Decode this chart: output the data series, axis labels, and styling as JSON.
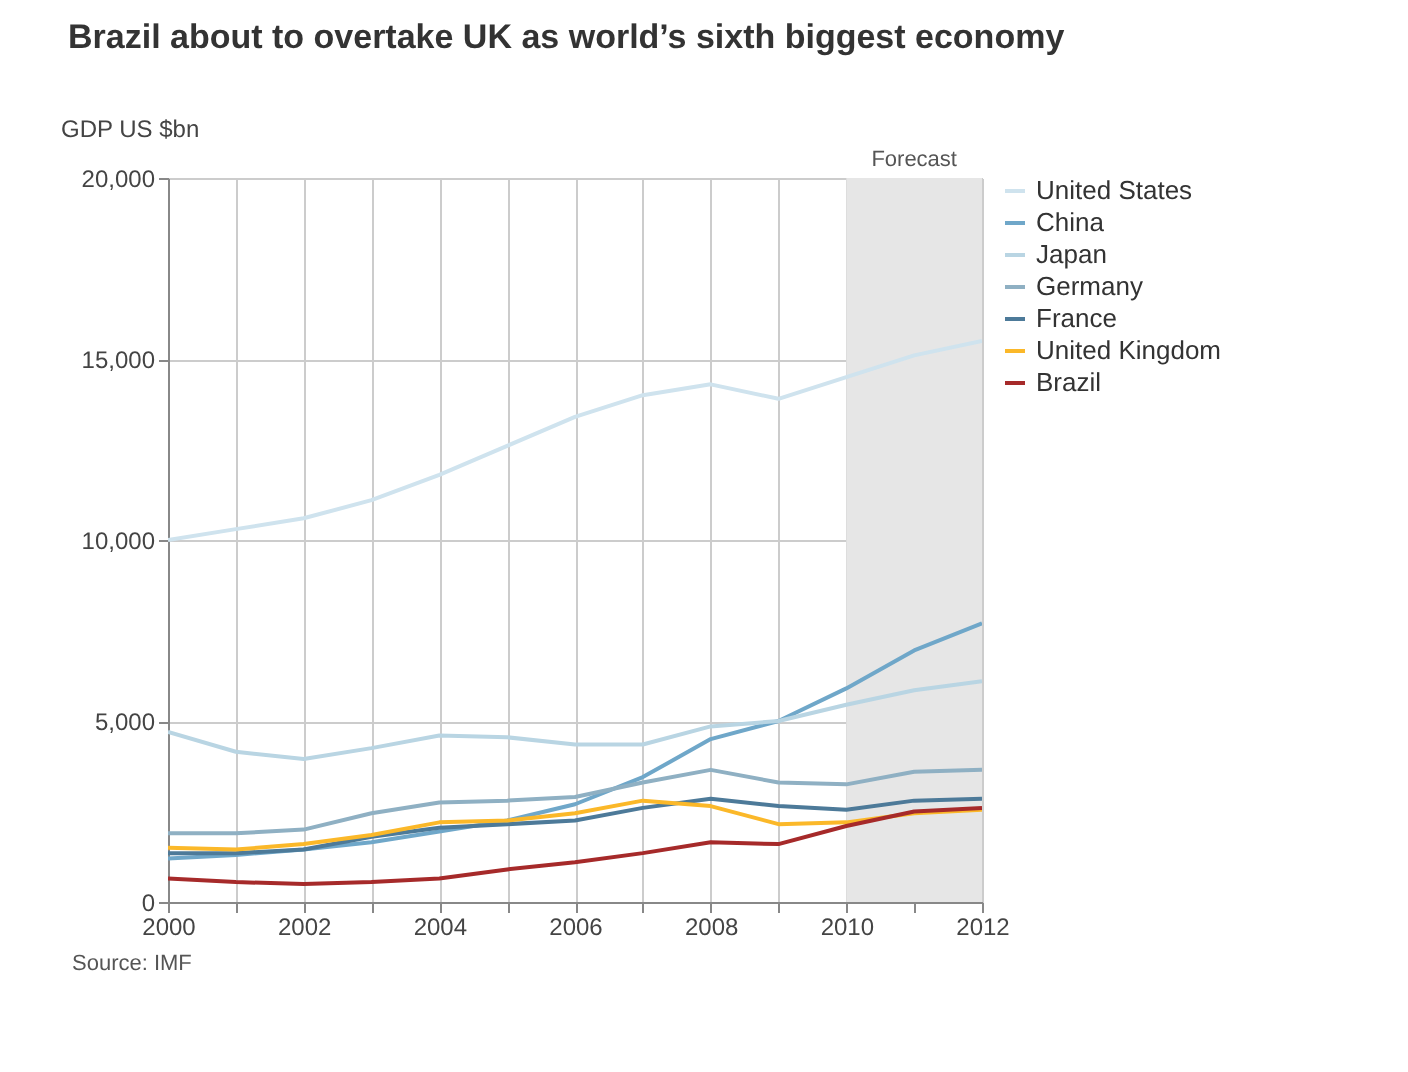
{
  "chart_data": {
    "type": "line",
    "title": "Brazil about to overtake UK as world’s sixth biggest economy",
    "ylabel": "GDP US $bn",
    "x": [
      2000,
      2001,
      2002,
      2003,
      2004,
      2005,
      2006,
      2007,
      2008,
      2009,
      2010,
      2011,
      2012
    ],
    "series": [
      {
        "name": "United States",
        "color": "#cfe3ee",
        "values": [
          10000,
          10300,
          10600,
          11100,
          11800,
          12600,
          13400,
          14000,
          14300,
          13900,
          14500,
          15100,
          15500
        ]
      },
      {
        "name": "China",
        "color": "#6fa7c9",
        "values": [
          1200,
          1300,
          1450,
          1650,
          1950,
          2250,
          2700,
          3450,
          4500,
          5000,
          5900,
          6950,
          7700
        ]
      },
      {
        "name": "Japan",
        "color": "#b9d5e3",
        "values": [
          4700,
          4150,
          3950,
          4250,
          4600,
          4550,
          4350,
          4350,
          4850,
          5000,
          5450,
          5850,
          6100
        ]
      },
      {
        "name": "Germany",
        "color": "#8fb0c3",
        "values": [
          1900,
          1900,
          2000,
          2450,
          2750,
          2800,
          2900,
          3300,
          3650,
          3300,
          3250,
          3600,
          3650
        ]
      },
      {
        "name": "France",
        "color": "#4d7a99",
        "values": [
          1350,
          1350,
          1450,
          1800,
          2050,
          2150,
          2250,
          2600,
          2850,
          2650,
          2550,
          2800,
          2850
        ]
      },
      {
        "name": "United Kingdom",
        "color": "#fbb829",
        "values": [
          1500,
          1450,
          1600,
          1850,
          2200,
          2250,
          2450,
          2800,
          2650,
          2150,
          2200,
          2450,
          2550
        ]
      },
      {
        "name": "Brazil",
        "color": "#a62a2a",
        "values": [
          650,
          550,
          500,
          550,
          650,
          900,
          1100,
          1350,
          1650,
          1600,
          2100,
          2500,
          2600
        ]
      }
    ],
    "xlim": [
      2000,
      2012
    ],
    "xticks": [
      2000,
      {
        "value": 2001,
        "label": null
      },
      2002,
      {
        "value": 2003,
        "label": null
      },
      2004,
      {
        "value": 2005,
        "label": null
      },
      2006,
      {
        "value": 2007,
        "label": null
      },
      2008,
      {
        "value": 2009,
        "label": null
      },
      2010,
      {
        "value": 2011,
        "label": null
      },
      2012
    ],
    "ylim": [
      0,
      20000
    ],
    "yticks": [
      {
        "value": 0,
        "label": "0"
      },
      {
        "value": 5000,
        "label": "5,000"
      },
      {
        "value": 10000,
        "label": "10,000"
      },
      {
        "value": 15000,
        "label": "15,000"
      },
      {
        "value": 20000,
        "label": "20,000"
      }
    ],
    "bands": [
      {
        "axis": "x",
        "from": 2010,
        "to": 2012,
        "label": "Forecast",
        "color": "#e6e6e6"
      }
    ],
    "grid": true,
    "legend": "right",
    "annotations": [
      "Source: IMF"
    ]
  }
}
